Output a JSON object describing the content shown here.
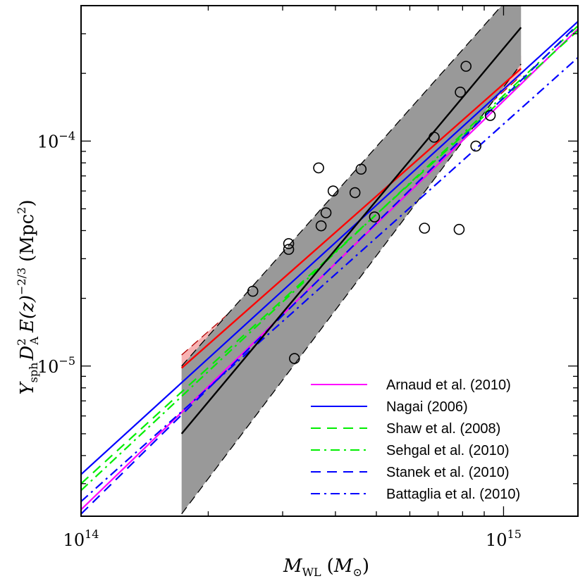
{
  "chart_data": {
    "type": "line",
    "title": "",
    "xscale": "log",
    "yscale": "log",
    "xlim": [
      100000000000000.0,
      1500000000000000.0
    ],
    "ylim": [
      2.15e-06,
      0.0004
    ],
    "xlabel_main": "M",
    "xlabel_sub": "WL",
    "xlabel_unit_main": "M",
    "xlabel_unit_sub": "⊙",
    "ylabel_parts": {
      "Y": "Y",
      "Y_sub": "sph",
      "D": "D",
      "D_sup": "2",
      "D_sub": "A",
      "Ez": "E(z)",
      "exp": "−2/3",
      "unit": "(Mpc",
      "unit_sup": "2",
      "unit_close": ")"
    },
    "x_ticks": [
      {
        "value": 100000000000000.0,
        "base": "10",
        "exp": "14"
      },
      {
        "value": 1000000000000000.0,
        "base": "10",
        "exp": "15"
      }
    ],
    "y_ticks": [
      {
        "value": 1e-05,
        "base": "10",
        "exp": "−5"
      },
      {
        "value": 0.0001,
        "base": "10",
        "exp": "−4"
      }
    ],
    "legend_position": "lower-right",
    "series": [
      {
        "name": "Arnaud et al. (2010)",
        "color": "#ff00ff",
        "dash": "solid",
        "x": [
          100000000000000.0,
          1500000000000000.0
        ],
        "y": [
          2.3e-06,
          0.000315
        ]
      },
      {
        "name": "Nagai (2006)",
        "color": "#0000ff",
        "dash": "solid",
        "x": [
          100000000000000.0,
          1500000000000000.0
        ],
        "y": [
          3.3e-06,
          0.00034
        ]
      },
      {
        "name": "Shaw et al. (2008)",
        "color": "#00ee00",
        "dash": "dashed",
        "x": [
          100000000000000.0,
          1500000000000000.0
        ],
        "y": [
          3e-06,
          0.00031
        ]
      },
      {
        "name": "Sehgal et al. (2010)",
        "color": "#00ee00",
        "dash": "dashdot",
        "x": [
          100000000000000.0,
          1500000000000000.0
        ],
        "y": [
          2.8e-06,
          0.000325
        ]
      },
      {
        "name": "Stanek et al. (2010)",
        "color": "#0000ff",
        "dash": "dashed",
        "x": [
          100000000000000.0,
          1500000000000000.0
        ],
        "y": [
          2.2e-06,
          0.00033
        ]
      },
      {
        "name": "Battaglia et al. (2010)",
        "color": "#0000ff",
        "dash": "dashdot",
        "x": [
          100000000000000.0,
          1500000000000000.0
        ],
        "y": [
          2.5e-06,
          0.000235
        ]
      }
    ],
    "fits": [
      {
        "name": "fit-red",
        "color": "#ff0000",
        "x": [
          173000000000000.0,
          1100000000000000.0
        ],
        "y": [
          9.8e-06,
          0.00021
        ],
        "band_lower": [
          8.7e-06,
          0.000195
        ],
        "band_upper": [
          1.12e-05,
          0.00024
        ],
        "band_color": "#f7b3b3"
      },
      {
        "name": "fit-black",
        "color": "#000000",
        "x": [
          173000000000000.0,
          1100000000000000.0
        ],
        "y": [
          5e-06,
          0.00032
        ],
        "band_lower": [
          2.2e-06,
          0.00022
        ],
        "band_upper": [
          1e-05,
          0.0005
        ],
        "band_color": "#999999"
      }
    ],
    "points": {
      "x": [
        255000000000000.0,
        310000000000000.0,
        310000000000000.0,
        320000000000000.0,
        365000000000000.0,
        370000000000000.0,
        380000000000000.0,
        395000000000000.0,
        445000000000000.0,
        460000000000000.0,
        495000000000000.0,
        650000000000000.0,
        685000000000000.0,
        785000000000000.0,
        790000000000000.0,
        815000000000000.0,
        860000000000000.0,
        930000000000000.0
      ],
      "y": [
        2.15e-05,
        3.5e-05,
        3.3e-05,
        1.08e-05,
        7.6e-05,
        4.2e-05,
        4.8e-05,
        6e-05,
        5.9e-05,
        7.5e-05,
        4.6e-05,
        4.1e-05,
        0.000104,
        4.05e-05,
        0.000165,
        0.000215,
        9.5e-05,
        0.00013
      ]
    }
  }
}
